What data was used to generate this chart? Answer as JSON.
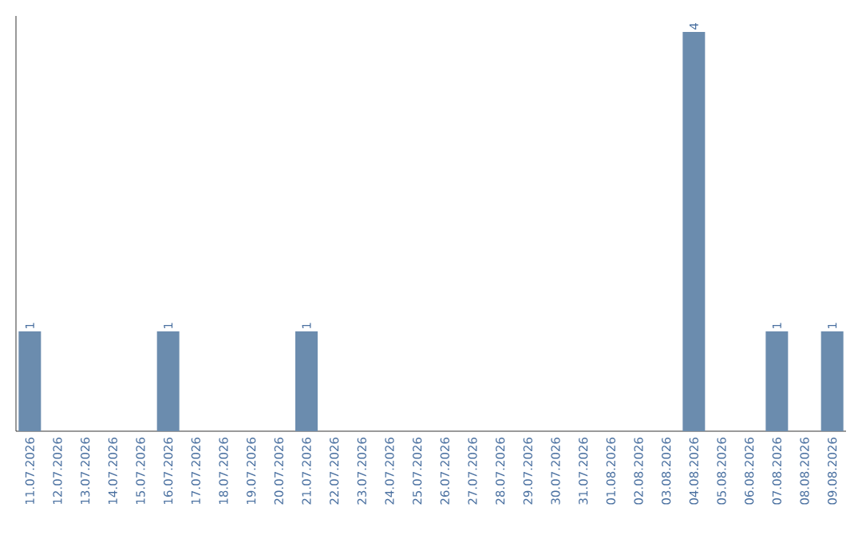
{
  "chart_data": {
    "type": "bar",
    "categories": [
      "11.07.2026",
      "12.07.2026",
      "13.07.2026",
      "14.07.2026",
      "15.07.2026",
      "16.07.2026",
      "17.07.2026",
      "18.07.2026",
      "19.07.2026",
      "20.07.2026",
      "21.07.2026",
      "22.07.2026",
      "23.07.2026",
      "24.07.2026",
      "25.07.2026",
      "26.07.2026",
      "27.07.2026",
      "28.07.2026",
      "29.07.2026",
      "30.07.2026",
      "31.07.2026",
      "01.08.2026",
      "02.08.2026",
      "03.08.2026",
      "04.08.2026",
      "05.08.2026",
      "06.08.2026",
      "07.08.2026",
      "08.08.2026",
      "09.08.2026"
    ],
    "values": [
      1,
      0,
      0,
      0,
      0,
      1,
      0,
      0,
      0,
      0,
      1,
      0,
      0,
      0,
      0,
      0,
      0,
      0,
      0,
      0,
      0,
      0,
      0,
      0,
      4,
      0,
      0,
      1,
      0,
      1
    ],
    "value_labels": [
      "1",
      null,
      null,
      null,
      null,
      "1",
      null,
      null,
      null,
      null,
      "1",
      null,
      null,
      null,
      null,
      null,
      null,
      null,
      null,
      null,
      null,
      null,
      null,
      null,
      "4",
      null,
      null,
      "1",
      null,
      "1"
    ],
    "color": "#6b8cae"
  }
}
